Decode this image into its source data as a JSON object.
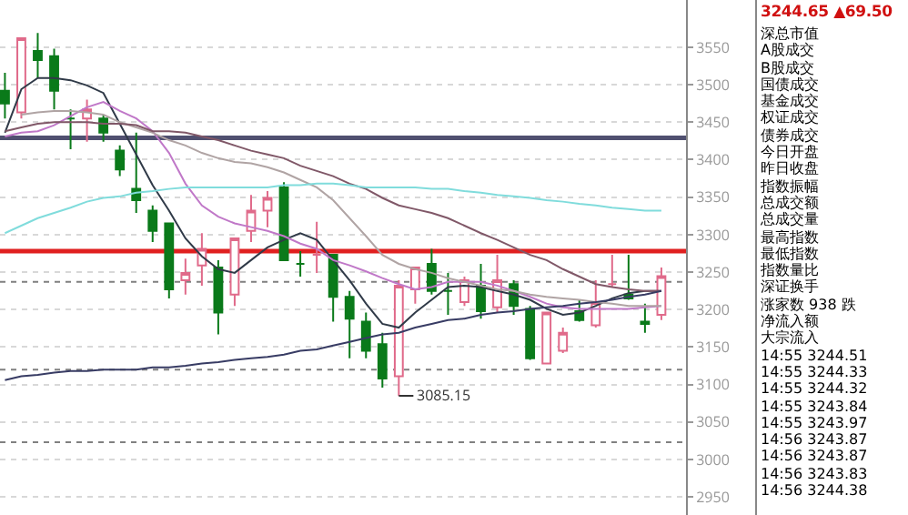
{
  "chart_data": {
    "type": "candlestick",
    "categories": [
      null,
      null,
      null,
      null,
      null,
      null,
      null,
      null,
      null,
      null,
      null,
      null,
      null,
      null,
      null,
      null,
      null,
      null,
      null,
      null,
      null,
      null,
      null,
      null,
      null,
      null,
      null,
      null,
      null,
      null,
      null,
      null,
      null,
      null,
      null,
      null,
      null,
      null,
      null,
      null,
      null
    ],
    "ohlc": [
      [
        3492,
        3516,
        3455,
        3475
      ],
      [
        3463,
        3562,
        3455,
        3562
      ],
      [
        3545,
        3569,
        3509,
        3533
      ],
      [
        3538,
        3548,
        3467,
        3492
      ],
      [
        3455,
        3467,
        3414,
        3455
      ],
      [
        3455,
        3480,
        3424,
        3467
      ],
      [
        3455,
        3460,
        3424,
        3436
      ],
      [
        3412,
        3419,
        3378,
        3387
      ],
      [
        3361,
        3436,
        3329,
        3346
      ],
      [
        3332,
        3339,
        3290,
        3305
      ],
      [
        3315,
        3315,
        3215,
        3227
      ],
      [
        3239,
        3268,
        3220,
        3249
      ],
      [
        3259,
        3302,
        3232,
        3281
      ],
      [
        3256,
        3266,
        3167,
        3196
      ],
      [
        3220,
        3295,
        3205,
        3295
      ],
      [
        3305,
        3353,
        3290,
        3332
      ],
      [
        3332,
        3358,
        3310,
        3349
      ],
      [
        3363,
        3370,
        3266,
        3266
      ],
      [
        3261,
        3278,
        3244,
        3261
      ],
      [
        3273,
        3317,
        3249,
        3273
      ],
      [
        3273,
        3273,
        3184,
        3217
      ],
      [
        3217,
        3225,
        3135,
        3188
      ],
      [
        3184,
        3196,
        3135,
        3145
      ],
      [
        3154,
        3169,
        3096,
        3108
      ],
      [
        3111,
        3239,
        3085.15,
        3232
      ],
      [
        3227,
        3256,
        3208,
        3256
      ],
      [
        3261,
        3281,
        3220,
        3225
      ],
      [
        3225,
        3249,
        3193,
        3225
      ],
      [
        3210,
        3244,
        3205,
        3239
      ],
      [
        3232,
        3261,
        3188,
        3198
      ],
      [
        3203,
        3273,
        3196,
        3239
      ],
      [
        3234,
        3239,
        3193,
        3205
      ],
      [
        3201,
        3205,
        3133,
        3135
      ],
      [
        3128,
        3196,
        3128,
        3196
      ],
      [
        3145,
        3176,
        3142,
        3169
      ],
      [
        3198,
        3213,
        3184,
        3186
      ],
      [
        3179,
        3239,
        3176,
        3210
      ],
      [
        3234,
        3273,
        3230,
        3234
      ],
      [
        3220,
        3273,
        3213,
        3215
      ],
      [
        3184,
        3208,
        3169,
        3181
      ],
      [
        3193,
        3256,
        3186,
        3244.65
      ]
    ],
    "series": [
      {
        "type": "line",
        "color": "#303a48",
        "values": [
          3436,
          3494,
          3509,
          3509,
          3506,
          3499,
          3489,
          3448,
          3407,
          3366,
          3332,
          3295,
          3271,
          3254,
          3249,
          3266,
          3283,
          3293,
          3302,
          3293,
          3266,
          3239,
          3208,
          3181,
          3176,
          3196,
          3213,
          3230,
          3232,
          3230,
          3225,
          3220,
          3213,
          3201,
          3193,
          3196,
          3205,
          3215,
          3222,
          3225,
          3225
        ]
      },
      {
        "type": "line",
        "color": "#c078c8",
        "values": [
          3431,
          3436,
          3438,
          3446,
          3458,
          3470,
          3477,
          3465,
          3455,
          3438,
          3409,
          3368,
          3339,
          3324,
          3315,
          3310,
          3305,
          3298,
          3288,
          3281,
          3266,
          3259,
          3251,
          3242,
          3234,
          3227,
          3230,
          3237,
          3237,
          3237,
          3232,
          3225,
          3217,
          3208,
          3203,
          3201,
          3201,
          3201,
          3201,
          3203,
          3205
        ]
      },
      {
        "type": "line",
        "color": "#b0a4a4",
        "values": [
          null,
          3460,
          3463,
          3465,
          3465,
          3463,
          3460,
          3450,
          3443,
          3436,
          3426,
          3419,
          3409,
          3402,
          3397,
          3395,
          3390,
          3383,
          3373,
          3363,
          3346,
          3322,
          3298,
          3273,
          3261,
          3254,
          3249,
          3242,
          3237,
          3232,
          3227,
          3225,
          3220,
          3217,
          3215,
          3213,
          3210,
          3208,
          3205,
          3205,
          3205
        ]
      },
      {
        "type": "line",
        "color": "#805868",
        "values": [
          3438,
          3443,
          3448,
          3450,
          3450,
          3450,
          3448,
          3448,
          3446,
          3438,
          3438,
          3436,
          3431,
          3426,
          3419,
          3412,
          3407,
          3402,
          3392,
          3385,
          3378,
          3368,
          3361,
          3349,
          3339,
          3334,
          3329,
          3322,
          3312,
          3302,
          3293,
          3283,
          3273,
          3266,
          3254,
          3244,
          3234,
          3230,
          3227,
          3225,
          3225
        ]
      },
      {
        "type": "line",
        "color": "#80dcdc",
        "values": [
          3302,
          3312,
          3322,
          3329,
          3336,
          3344,
          3349,
          3351,
          3356,
          3358,
          3361,
          3363,
          3363,
          3363,
          3363,
          3363,
          3363,
          3366,
          3366,
          3368,
          3368,
          3366,
          3363,
          3363,
          3363,
          3363,
          3361,
          3361,
          3358,
          3356,
          3353,
          3351,
          3349,
          3346,
          3344,
          3341,
          3339,
          3336,
          3334,
          3332,
          3332
        ]
      },
      {
        "type": "line",
        "color": "#383c64",
        "values": [
          3106,
          3111,
          3113,
          3116,
          3118,
          3118,
          3120,
          3120,
          3120,
          3123,
          3123,
          3125,
          3128,
          3130,
          3133,
          3135,
          3137,
          3140,
          3145,
          3147,
          3152,
          3157,
          3162,
          3167,
          3169,
          3176,
          3181,
          3186,
          3188,
          3193,
          3196,
          3198,
          3201,
          3203,
          3205,
          3208,
          3210,
          3213,
          3217,
          3220,
          3225
        ]
      }
    ],
    "ylim": [
      2926,
      3613
    ],
    "yticks": [
      2950,
      3000,
      3050,
      3100,
      3150,
      3200,
      3250,
      3300,
      3350,
      3400,
      3450,
      3500,
      3550
    ],
    "grid": "y",
    "tick_labels": "y",
    "ref_lines": [
      {
        "axis": "y",
        "value": 3429,
        "color": "#505070",
        "line_style": "solid"
      },
      {
        "axis": "y",
        "value": 3278,
        "color": "#e02020",
        "line_style": "solid"
      },
      {
        "axis": "y",
        "value": 3237,
        "color": "#808080",
        "line_style": "dotted"
      },
      {
        "axis": "y",
        "value": 3120,
        "color": "#808080",
        "line_style": "dotted"
      },
      {
        "axis": "y",
        "value": 3023,
        "color": "#808080",
        "line_style": "dotted"
      }
    ],
    "annotations": [
      "3085.15",
      "3244.65 ▲69.50",
      "深总市值",
      "A股成交",
      "B股成交",
      "国债成交",
      "基金成交",
      "权证成交",
      "债券成交",
      "今日开盘",
      "昨日收盘",
      "指数振幅",
      "总成交额",
      "总成交量",
      "最高指数",
      "最低指数",
      "指数量比",
      "深证换手",
      "涨家数 938 跌",
      "净流入额",
      "大宗流入",
      "14:55 3244.51",
      "14:55 3244.33",
      "14:55 3244.32",
      "14:55 3243.84",
      "14:55 3243.97",
      "14:56 3243.87",
      "14:56 3243.87",
      "14:56 3243.83",
      "14:56 3244.38"
    ]
  }
}
